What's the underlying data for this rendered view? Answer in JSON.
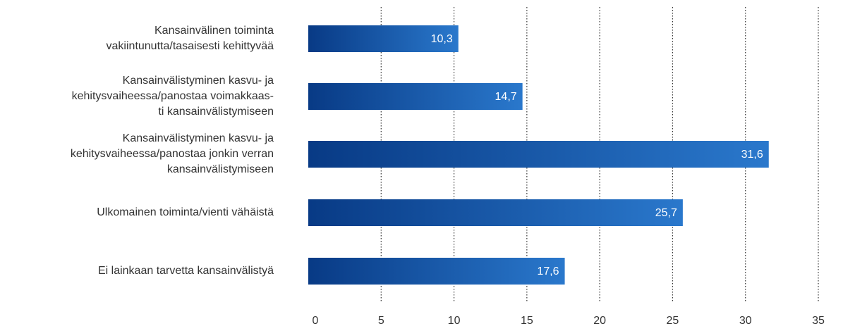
{
  "chart_data": {
    "type": "bar",
    "orientation": "horizontal",
    "categories": [
      [
        "Kansainvälinen toiminta",
        "vakiintunutta/tasaisesti kehittyvää"
      ],
      [
        "Kansainvälistyminen kasvu- ja",
        "kehitysvaiheessa/panostaa voimakkaas-",
        "ti kansainvälistymiseen"
      ],
      [
        "Kansainvälistyminen kasvu- ja",
        "kehitysvaiheessa/panostaa jonkin verran",
        "kansainvälistymiseen"
      ],
      [
        "Ulkomainen toiminta/vienti vähäistä"
      ],
      [
        "Ei lainkaan tarvetta kansainvälistyä"
      ]
    ],
    "values": [
      10.3,
      14.7,
      31.6,
      25.7,
      17.6
    ],
    "value_labels": [
      "10,3",
      "14,7",
      "31,6",
      "25,7",
      "17,6"
    ],
    "color": [
      "#083a85",
      "#2a78cc"
    ],
    "xlim": [
      0,
      35
    ],
    "xticks": [
      0,
      5,
      10,
      15,
      20,
      25,
      30,
      35
    ],
    "grid": true
  }
}
